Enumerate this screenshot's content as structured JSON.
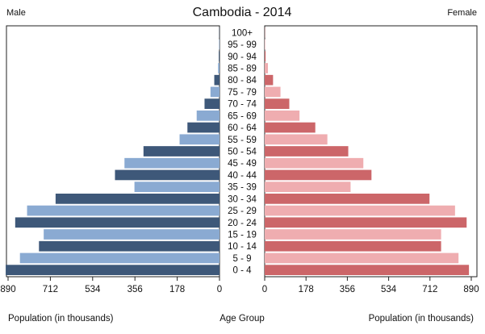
{
  "chart_data": {
    "type": "bar",
    "title": "Cambodia - 2014",
    "left_label": "Male",
    "right_label": "Female",
    "xlabel_left": "Population (in thousands)",
    "xlabel_center": "Age Group",
    "xlabel_right": "Population (in thousands)",
    "xlim": [
      0,
      890
    ],
    "xticks": [
      "890",
      "712",
      "534",
      "356",
      "178",
      "0",
      "0",
      "178",
      "356",
      "534",
      "712",
      "890"
    ],
    "categories": [
      "100+",
      "95 - 99",
      "90 - 94",
      "85 - 89",
      "80 - 84",
      "75 - 79",
      "70 - 74",
      "65 - 69",
      "60 - 64",
      "55 - 59",
      "50 - 54",
      "45 - 49",
      "40 - 44",
      "35 - 39",
      "30 - 34",
      "25 - 29",
      "20 - 24",
      "15 - 19",
      "10 - 14",
      "5 - 9",
      "0 - 4"
    ],
    "series": [
      {
        "name": "Male",
        "values": [
          1,
          2,
          3,
          6,
          22,
          38,
          63,
          96,
          135,
          168,
          320,
          400,
          440,
          358,
          690,
          810,
          860,
          740,
          760,
          840,
          900
        ]
      },
      {
        "name": "Female",
        "values": [
          1,
          2,
          4,
          14,
          36,
          68,
          106,
          150,
          218,
          270,
          360,
          425,
          460,
          370,
          710,
          820,
          870,
          760,
          760,
          835,
          880
        ]
      }
    ],
    "colors": {
      "male_dark": "#3e5879",
      "male_light": "#8aaad2",
      "female_dark": "#cc6669",
      "female_light": "#efadb0",
      "border": "#222222"
    },
    "grid": false
  }
}
